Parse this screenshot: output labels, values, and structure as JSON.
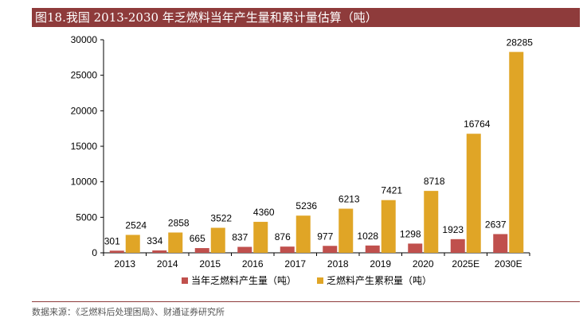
{
  "title": "图18.我国 2013-2030 年乏燃料当年产生量和累计量估算（吨）",
  "source": "数据来源：《乏燃料后处理困局》、财通证券研究所",
  "colors": {
    "title_bg": "#8e3b3b",
    "series1": "#c0504d",
    "series2": "#e0a526"
  },
  "chart_data": {
    "type": "bar",
    "title": "图18.我国 2013-2030 年乏燃料当年产生量和累计量估算（吨）",
    "categories": [
      "2013",
      "2014",
      "2015",
      "2016",
      "2017",
      "2018",
      "2019",
      "2020",
      "2025E",
      "2030E"
    ],
    "series": [
      {
        "name": "当年乏燃料产生量（吨）",
        "color": "#c0504d",
        "values": [
          301,
          334,
          665,
          837,
          876,
          977,
          1028,
          1298,
          1923,
          2637
        ]
      },
      {
        "name": "乏燃料产生累积量（吨）",
        "color": "#e0a526",
        "values": [
          2524,
          2858,
          3522,
          4360,
          5236,
          6213,
          7421,
          8718,
          16764,
          28285
        ]
      }
    ],
    "ylim": [
      0,
      30000
    ],
    "yticks": [
      0,
      5000,
      10000,
      15000,
      20000,
      25000,
      30000
    ],
    "xlabel": "",
    "ylabel": "",
    "grid": false,
    "legend": "bottom",
    "data_labels": true
  }
}
